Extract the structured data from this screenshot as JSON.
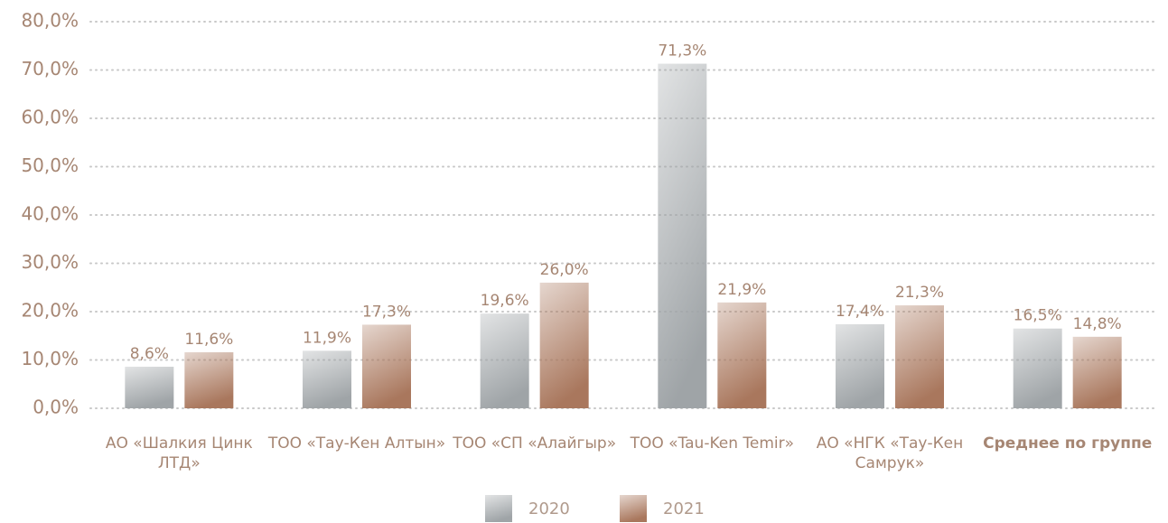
{
  "chart_data": {
    "type": "bar",
    "categories": [
      "АО «Шалкия Цинк ЛТД»",
      "ТОО «Тау-Кен Алтын»",
      "ТОО «СП «Алайгыр»",
      "ТОО «Tau-Ken Temir»",
      "АО «НГК «Тау-Кен Самрук»",
      "Среднее по группе"
    ],
    "series": [
      {
        "name": "2020",
        "color": "#9fa4a7",
        "values": [
          8.6,
          11.9,
          19.6,
          71.3,
          17.4,
          16.5
        ],
        "value_labels": [
          "8,6%",
          "11,9%",
          "19,6%",
          "71,3%",
          "17,4%",
          "16,5%"
        ]
      },
      {
        "name": "2021",
        "color": "#a9775d",
        "values": [
          11.6,
          17.3,
          26.0,
          21.9,
          21.3,
          14.8
        ],
        "value_labels": [
          "11,6%",
          "17,3%",
          "26,0%",
          "21,9%",
          "21,3%",
          "14,8%"
        ]
      }
    ],
    "ylim": [
      0,
      80
    ],
    "yticks": [
      {
        "value": 0,
        "label": "0,0%"
      },
      {
        "value": 10,
        "label": "10,0%"
      },
      {
        "value": 20,
        "label": "20,0%"
      },
      {
        "value": 30,
        "label": "30,0%"
      },
      {
        "value": 40,
        "label": "40,0%"
      },
      {
        "value": 50,
        "label": "50,0%"
      },
      {
        "value": 60,
        "label": "60,0%"
      },
      {
        "value": 70,
        "label": "70,0%"
      },
      {
        "value": 80,
        "label": "80,0%"
      }
    ],
    "grid": true,
    "legend": "bottom"
  }
}
